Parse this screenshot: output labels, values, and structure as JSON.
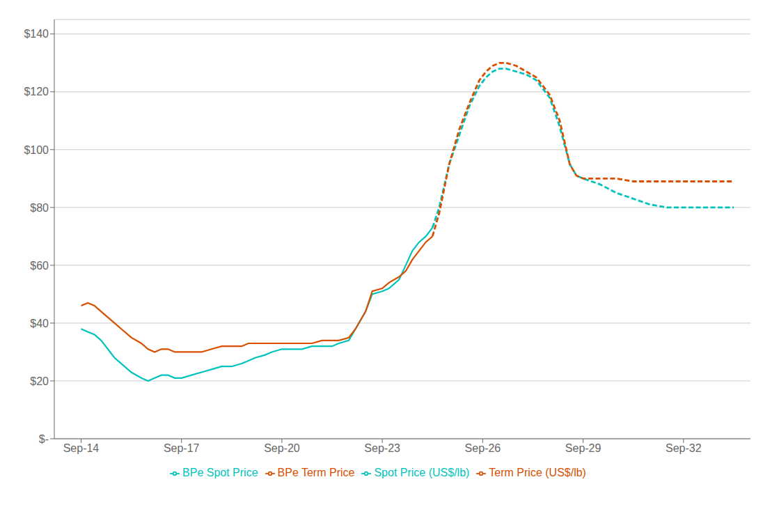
{
  "chart_data": {
    "type": "line",
    "xlim": [
      -0.8,
      20.0
    ],
    "xticks": [
      {
        "value": 0,
        "label": "Sep-14"
      },
      {
        "value": 3,
        "label": "Sep-17"
      },
      {
        "value": 6,
        "label": "Sep-20"
      },
      {
        "value": 9,
        "label": "Sep-23"
      },
      {
        "value": 12,
        "label": "Sep-26"
      },
      {
        "value": 15,
        "label": "Sep-29"
      },
      {
        "value": 18,
        "label": "Sep-32"
      }
    ],
    "ylim": [
      0,
      145
    ],
    "yticks": [
      {
        "value": 0,
        "label": "$-"
      },
      {
        "value": 20,
        "label": "$20"
      },
      {
        "value": 40,
        "label": "$40"
      },
      {
        "value": 60,
        "label": "$60"
      },
      {
        "value": 80,
        "label": "$80"
      },
      {
        "value": 100,
        "label": "$100"
      },
      {
        "value": 120,
        "label": "$120"
      },
      {
        "value": 140,
        "label": "$140"
      }
    ],
    "grid": true,
    "legend": "bottom",
    "series": [
      {
        "name": "Spot Price (US$/lb)",
        "color": "#00C4BC",
        "line_style": "solid",
        "x": [
          0,
          0.2,
          0.4,
          0.6,
          0.8,
          1.0,
          1.2,
          1.5,
          1.8,
          2.0,
          2.2,
          2.4,
          2.6,
          2.8,
          3.0,
          3.3,
          3.6,
          3.9,
          4.2,
          4.5,
          4.8,
          5.0,
          5.2,
          5.5,
          5.7,
          6.0,
          6.3,
          6.6,
          6.9,
          7.2,
          7.5,
          7.7,
          8.0,
          8.2,
          8.5,
          8.7,
          9.0,
          9.2,
          9.5,
          9.7,
          9.9,
          10.1,
          10.3,
          10.5
        ],
        "values": [
          38,
          37,
          36,
          34,
          31,
          28,
          26,
          23,
          21,
          20,
          21,
          22,
          22,
          21,
          21,
          22,
          23,
          24,
          25,
          25,
          26,
          27,
          28,
          29,
          30,
          31,
          31,
          31,
          32,
          32,
          32,
          33,
          34,
          38,
          44,
          50,
          51,
          52,
          55,
          60,
          65,
          68,
          70,
          73
        ]
      },
      {
        "name": "Term Price (US$/lb)",
        "color": "#D94F00",
        "line_style": "solid",
        "x": [
          0,
          0.2,
          0.4,
          0.6,
          0.8,
          1.0,
          1.2,
          1.5,
          1.8,
          2.0,
          2.2,
          2.4,
          2.6,
          2.8,
          3.0,
          3.3,
          3.6,
          3.9,
          4.2,
          4.5,
          4.8,
          5.0,
          5.2,
          5.5,
          5.7,
          6.0,
          6.3,
          6.6,
          6.9,
          7.2,
          7.5,
          7.7,
          8.0,
          8.2,
          8.5,
          8.7,
          9.0,
          9.2,
          9.5,
          9.7,
          9.9,
          10.1,
          10.3,
          10.5
        ],
        "values": [
          46,
          47,
          46,
          44,
          42,
          40,
          38,
          35,
          33,
          31,
          30,
          31,
          31,
          30,
          30,
          30,
          30,
          31,
          32,
          32,
          32,
          33,
          33,
          33,
          33,
          33,
          33,
          33,
          33,
          34,
          34,
          34,
          35,
          38,
          44,
          51,
          52,
          54,
          56,
          58,
          62,
          65,
          68,
          70
        ]
      },
      {
        "name": "BPe Spot Price",
        "color": "#00C4BC",
        "line_style": "dashed",
        "x": [
          10.5,
          10.7,
          11.0,
          11.3,
          11.6,
          11.9,
          12.1,
          12.3,
          12.5,
          12.7,
          13.0,
          13.3,
          13.6,
          14.0,
          14.3,
          14.6,
          14.8,
          15.0,
          15.5,
          16.0,
          16.5,
          17.0,
          17.5,
          18.0,
          18.5,
          19.0,
          19.5
        ],
        "values": [
          73,
          80,
          95,
          105,
          115,
          122,
          125,
          127,
          128,
          128,
          127,
          126,
          124,
          118,
          108,
          95,
          91,
          90,
          88,
          85,
          83,
          81,
          80,
          80,
          80,
          80,
          80
        ]
      },
      {
        "name": "BPe Term Price",
        "color": "#D94F00",
        "line_style": "dashed",
        "x": [
          10.5,
          10.7,
          11.0,
          11.3,
          11.6,
          11.9,
          12.1,
          12.3,
          12.5,
          12.7,
          13.0,
          13.3,
          13.6,
          14.0,
          14.3,
          14.6,
          14.8,
          15.0,
          15.5,
          16.0,
          16.5,
          17.0,
          17.5,
          18.0,
          18.5,
          19.0,
          19.5
        ],
        "values": [
          70,
          78,
          95,
          107,
          116,
          124,
          127,
          129,
          130,
          130,
          129,
          127,
          125,
          119,
          110,
          95,
          91,
          90,
          90,
          90,
          89,
          89,
          89,
          89,
          89,
          89,
          89
        ]
      }
    ]
  }
}
